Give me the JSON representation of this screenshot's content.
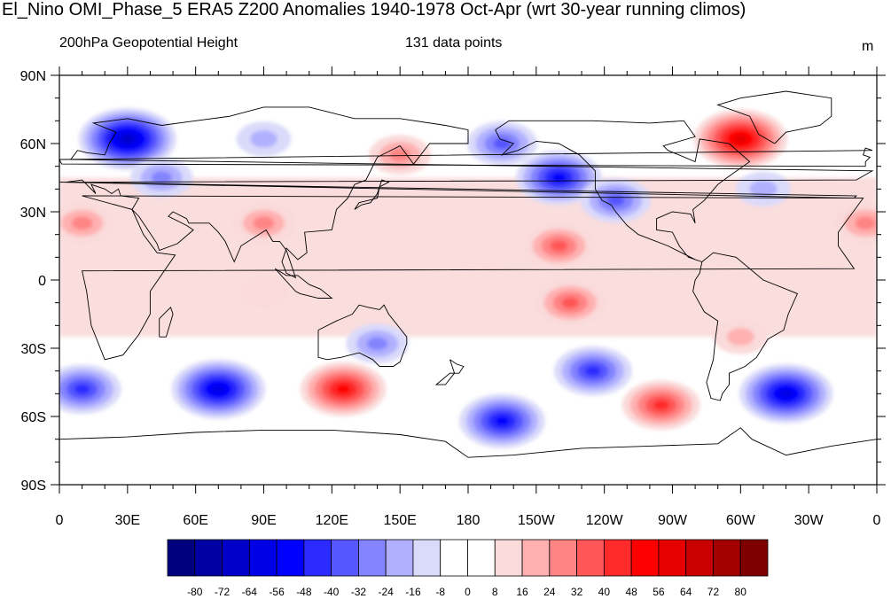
{
  "title": "El_Nino OMI_Phase_5 ERA5 Z200 Anomalies 1940-1978 Oct-Apr (wrt 30-year running climos)",
  "subtitle_left": "200hPa Geopotential Height",
  "subtitle_center": "131 data points",
  "subtitle_right": "m",
  "y_axis": {
    "ticks": [
      "90N",
      "60N",
      "30N",
      "0",
      "30S",
      "60S",
      "90S"
    ],
    "values": [
      90,
      60,
      30,
      0,
      -30,
      -60,
      -90
    ]
  },
  "x_axis": {
    "ticks": [
      "0",
      "30E",
      "60E",
      "90E",
      "120E",
      "150E",
      "180",
      "150W",
      "120W",
      "90W",
      "60W",
      "30W",
      "0"
    ],
    "values": [
      0,
      30,
      60,
      90,
      120,
      150,
      180,
      210,
      240,
      270,
      300,
      330,
      360
    ]
  },
  "colorbar": {
    "colors": [
      "#00007f",
      "#0000a3",
      "#0000c8",
      "#0000e6",
      "#0000ff",
      "#2b2bff",
      "#5757ff",
      "#8484ff",
      "#b0b0ff",
      "#dadafa",
      "#ffffff",
      "#ffffff",
      "#fadada",
      "#ffb0b0",
      "#ff8484",
      "#ff5757",
      "#ff2b2b",
      "#ff0000",
      "#e60000",
      "#c80000",
      "#a30000",
      "#7f0000"
    ],
    "labels": [
      "-80",
      "-72",
      "-64",
      "-56",
      "-48",
      "-40",
      "-32",
      "-24",
      "-16",
      "-8",
      "0",
      "8",
      "16",
      "24",
      "32",
      "40",
      "48",
      "56",
      "64",
      "72",
      "80"
    ]
  },
  "chart_data": {
    "type": "heatmap",
    "variable": "Z200 anomaly",
    "units": "m",
    "xlim": [
      0,
      360
    ],
    "ylim": [
      -90,
      90
    ],
    "contour_levels": [
      -80,
      -72,
      -64,
      -56,
      -48,
      -40,
      -32,
      -24,
      -16,
      -8,
      0,
      8,
      16,
      24,
      32,
      40,
      48,
      56,
      64,
      72,
      80
    ],
    "anomaly_centers": [
      {
        "lon": 30,
        "lat": 62,
        "value": -60
      },
      {
        "lon": 45,
        "lat": 45,
        "value": -24
      },
      {
        "lon": 90,
        "lat": 62,
        "value": -16
      },
      {
        "lon": 10,
        "lat": 25,
        "value": 24
      },
      {
        "lon": 90,
        "lat": 25,
        "value": 24
      },
      {
        "lon": 150,
        "lat": 55,
        "value": 24
      },
      {
        "lon": 195,
        "lat": 60,
        "value": -32
      },
      {
        "lon": 220,
        "lat": 45,
        "value": -48
      },
      {
        "lon": 245,
        "lat": 35,
        "value": -32
      },
      {
        "lon": 300,
        "lat": 62,
        "value": 56
      },
      {
        "lon": 310,
        "lat": 40,
        "value": -16
      },
      {
        "lon": 355,
        "lat": 25,
        "value": 24
      },
      {
        "lon": 220,
        "lat": 15,
        "value": 32
      },
      {
        "lon": 225,
        "lat": -10,
        "value": 32
      },
      {
        "lon": 90,
        "lat": -5,
        "value": 8
      },
      {
        "lon": 10,
        "lat": -48,
        "value": -40
      },
      {
        "lon": 70,
        "lat": -48,
        "value": -56
      },
      {
        "lon": 125,
        "lat": -48,
        "value": 48
      },
      {
        "lon": 140,
        "lat": -28,
        "value": -24
      },
      {
        "lon": 195,
        "lat": -62,
        "value": -48
      },
      {
        "lon": 235,
        "lat": -40,
        "value": -40
      },
      {
        "lon": 265,
        "lat": -55,
        "value": 40
      },
      {
        "lon": 300,
        "lat": -25,
        "value": 16
      },
      {
        "lon": 320,
        "lat": -50,
        "value": -56
      }
    ]
  }
}
